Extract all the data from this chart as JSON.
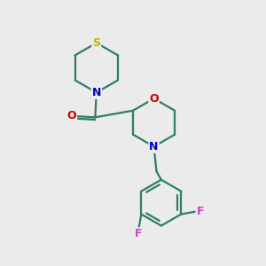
{
  "bg_color": "#ebebeb",
  "bond_color": "#2d7d6b",
  "atom_colors": {
    "S": "#b8b800",
    "N": "#0000cc",
    "O": "#cc0000",
    "F": "#cc44cc"
  },
  "bond_width": 1.6,
  "figsize": [
    3.0,
    3.0
  ],
  "dpi": 100
}
